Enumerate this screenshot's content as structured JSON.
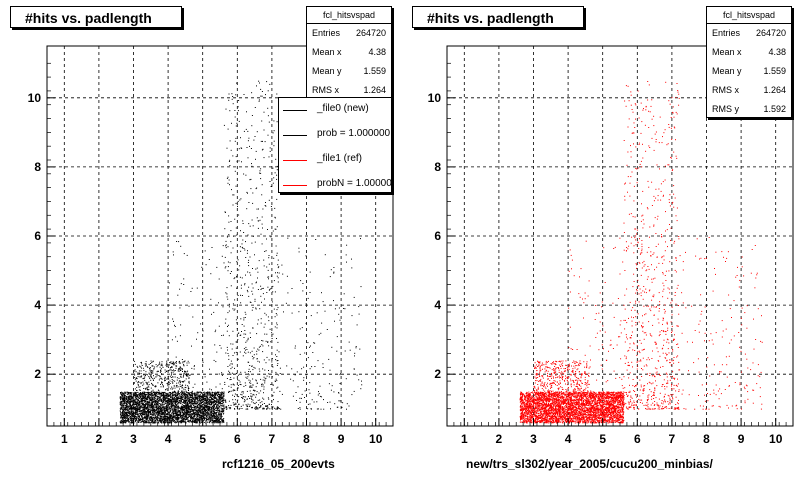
{
  "colors": {
    "file0": "#000000",
    "file1": "#ff0000",
    "grid": "#000000"
  },
  "left_pad": {
    "title": "#hits vs. padlength",
    "x_title": "rcf1216_05_200evts",
    "stats": {
      "name": "fcl_hitsvspad",
      "rows": [
        {
          "label": "Entries",
          "value": "264720"
        },
        {
          "label": "Mean x",
          "value": "4.38"
        },
        {
          "label": "Mean y",
          "value": "1.559"
        },
        {
          "label": "RMS x",
          "value": "1.264"
        }
      ]
    },
    "legend": [
      {
        "text": "_file0 (new)",
        "color": "#000000"
      },
      {
        "text": "prob = 1.000000",
        "color": "#000000"
      },
      {
        "text": "_file1 (ref)",
        "color": "#ff0000"
      },
      {
        "text": "probN = 1.000000",
        "color": "#ff0000"
      }
    ]
  },
  "right_pad": {
    "title": "#hits vs. padlength",
    "x_title": "new/trs_sl302/year_2005/cucu200_minbias/",
    "stats": {
      "name": "fcl_hitsvspad",
      "rows": [
        {
          "label": "Entries",
          "value": "264720"
        },
        {
          "label": "Mean x",
          "value": "4.38"
        },
        {
          "label": "Mean y",
          "value": "1.559"
        },
        {
          "label": "RMS x",
          "value": "1.264"
        },
        {
          "label": "RMS y",
          "value": "1.592"
        }
      ]
    }
  },
  "chart_data": [
    {
      "type": "scatter",
      "title": "#hits vs. padlength",
      "xlabel": "rcf1216_05_200evts",
      "ylabel": "",
      "xlim": [
        0.5,
        10.5
      ],
      "ylim": [
        0.5,
        11.5
      ],
      "xticks": [
        1,
        2,
        3,
        4,
        5,
        6,
        7,
        8,
        9,
        10
      ],
      "yticks": [
        2,
        4,
        6,
        8,
        10
      ],
      "grid": true,
      "legend_position": "top-right",
      "series": [
        {
          "name": "_file0 (new)",
          "color": "#000000",
          "regions": [
            {
              "x": [
                2.6,
                5.6
              ],
              "y": [
                0.6,
                1.5
              ],
              "density": "very high"
            },
            {
              "x": [
                3.0,
                4.6
              ],
              "y": [
                1.5,
                2.4
              ],
              "density": "medium"
            },
            {
              "x": [
                5.6,
                7.2
              ],
              "y": [
                1.0,
                10.5
              ],
              "density": "low"
            },
            {
              "x": [
                4.0,
                9.6
              ],
              "y": [
                1.0,
                6.0
              ],
              "density": "sparse"
            }
          ]
        }
      ]
    },
    {
      "type": "scatter",
      "title": "#hits vs. padlength",
      "xlabel": "new/trs_sl302/year_2005/cucu200_minbias/",
      "ylabel": "",
      "xlim": [
        0.5,
        10.5
      ],
      "ylim": [
        0.5,
        11.5
      ],
      "xticks": [
        1,
        2,
        3,
        4,
        5,
        6,
        7,
        8,
        9,
        10
      ],
      "yticks": [
        2,
        4,
        6,
        8,
        10
      ],
      "grid": true,
      "series": [
        {
          "name": "_file1 (ref)",
          "color": "#ff0000",
          "regions": [
            {
              "x": [
                2.6,
                5.6
              ],
              "y": [
                0.6,
                1.5
              ],
              "density": "very high"
            },
            {
              "x": [
                3.0,
                4.6
              ],
              "y": [
                1.5,
                2.4
              ],
              "density": "medium"
            },
            {
              "x": [
                5.6,
                7.2
              ],
              "y": [
                1.0,
                10.5
              ],
              "density": "low"
            },
            {
              "x": [
                4.0,
                9.6
              ],
              "y": [
                1.0,
                6.0
              ],
              "density": "sparse"
            }
          ]
        }
      ]
    }
  ]
}
